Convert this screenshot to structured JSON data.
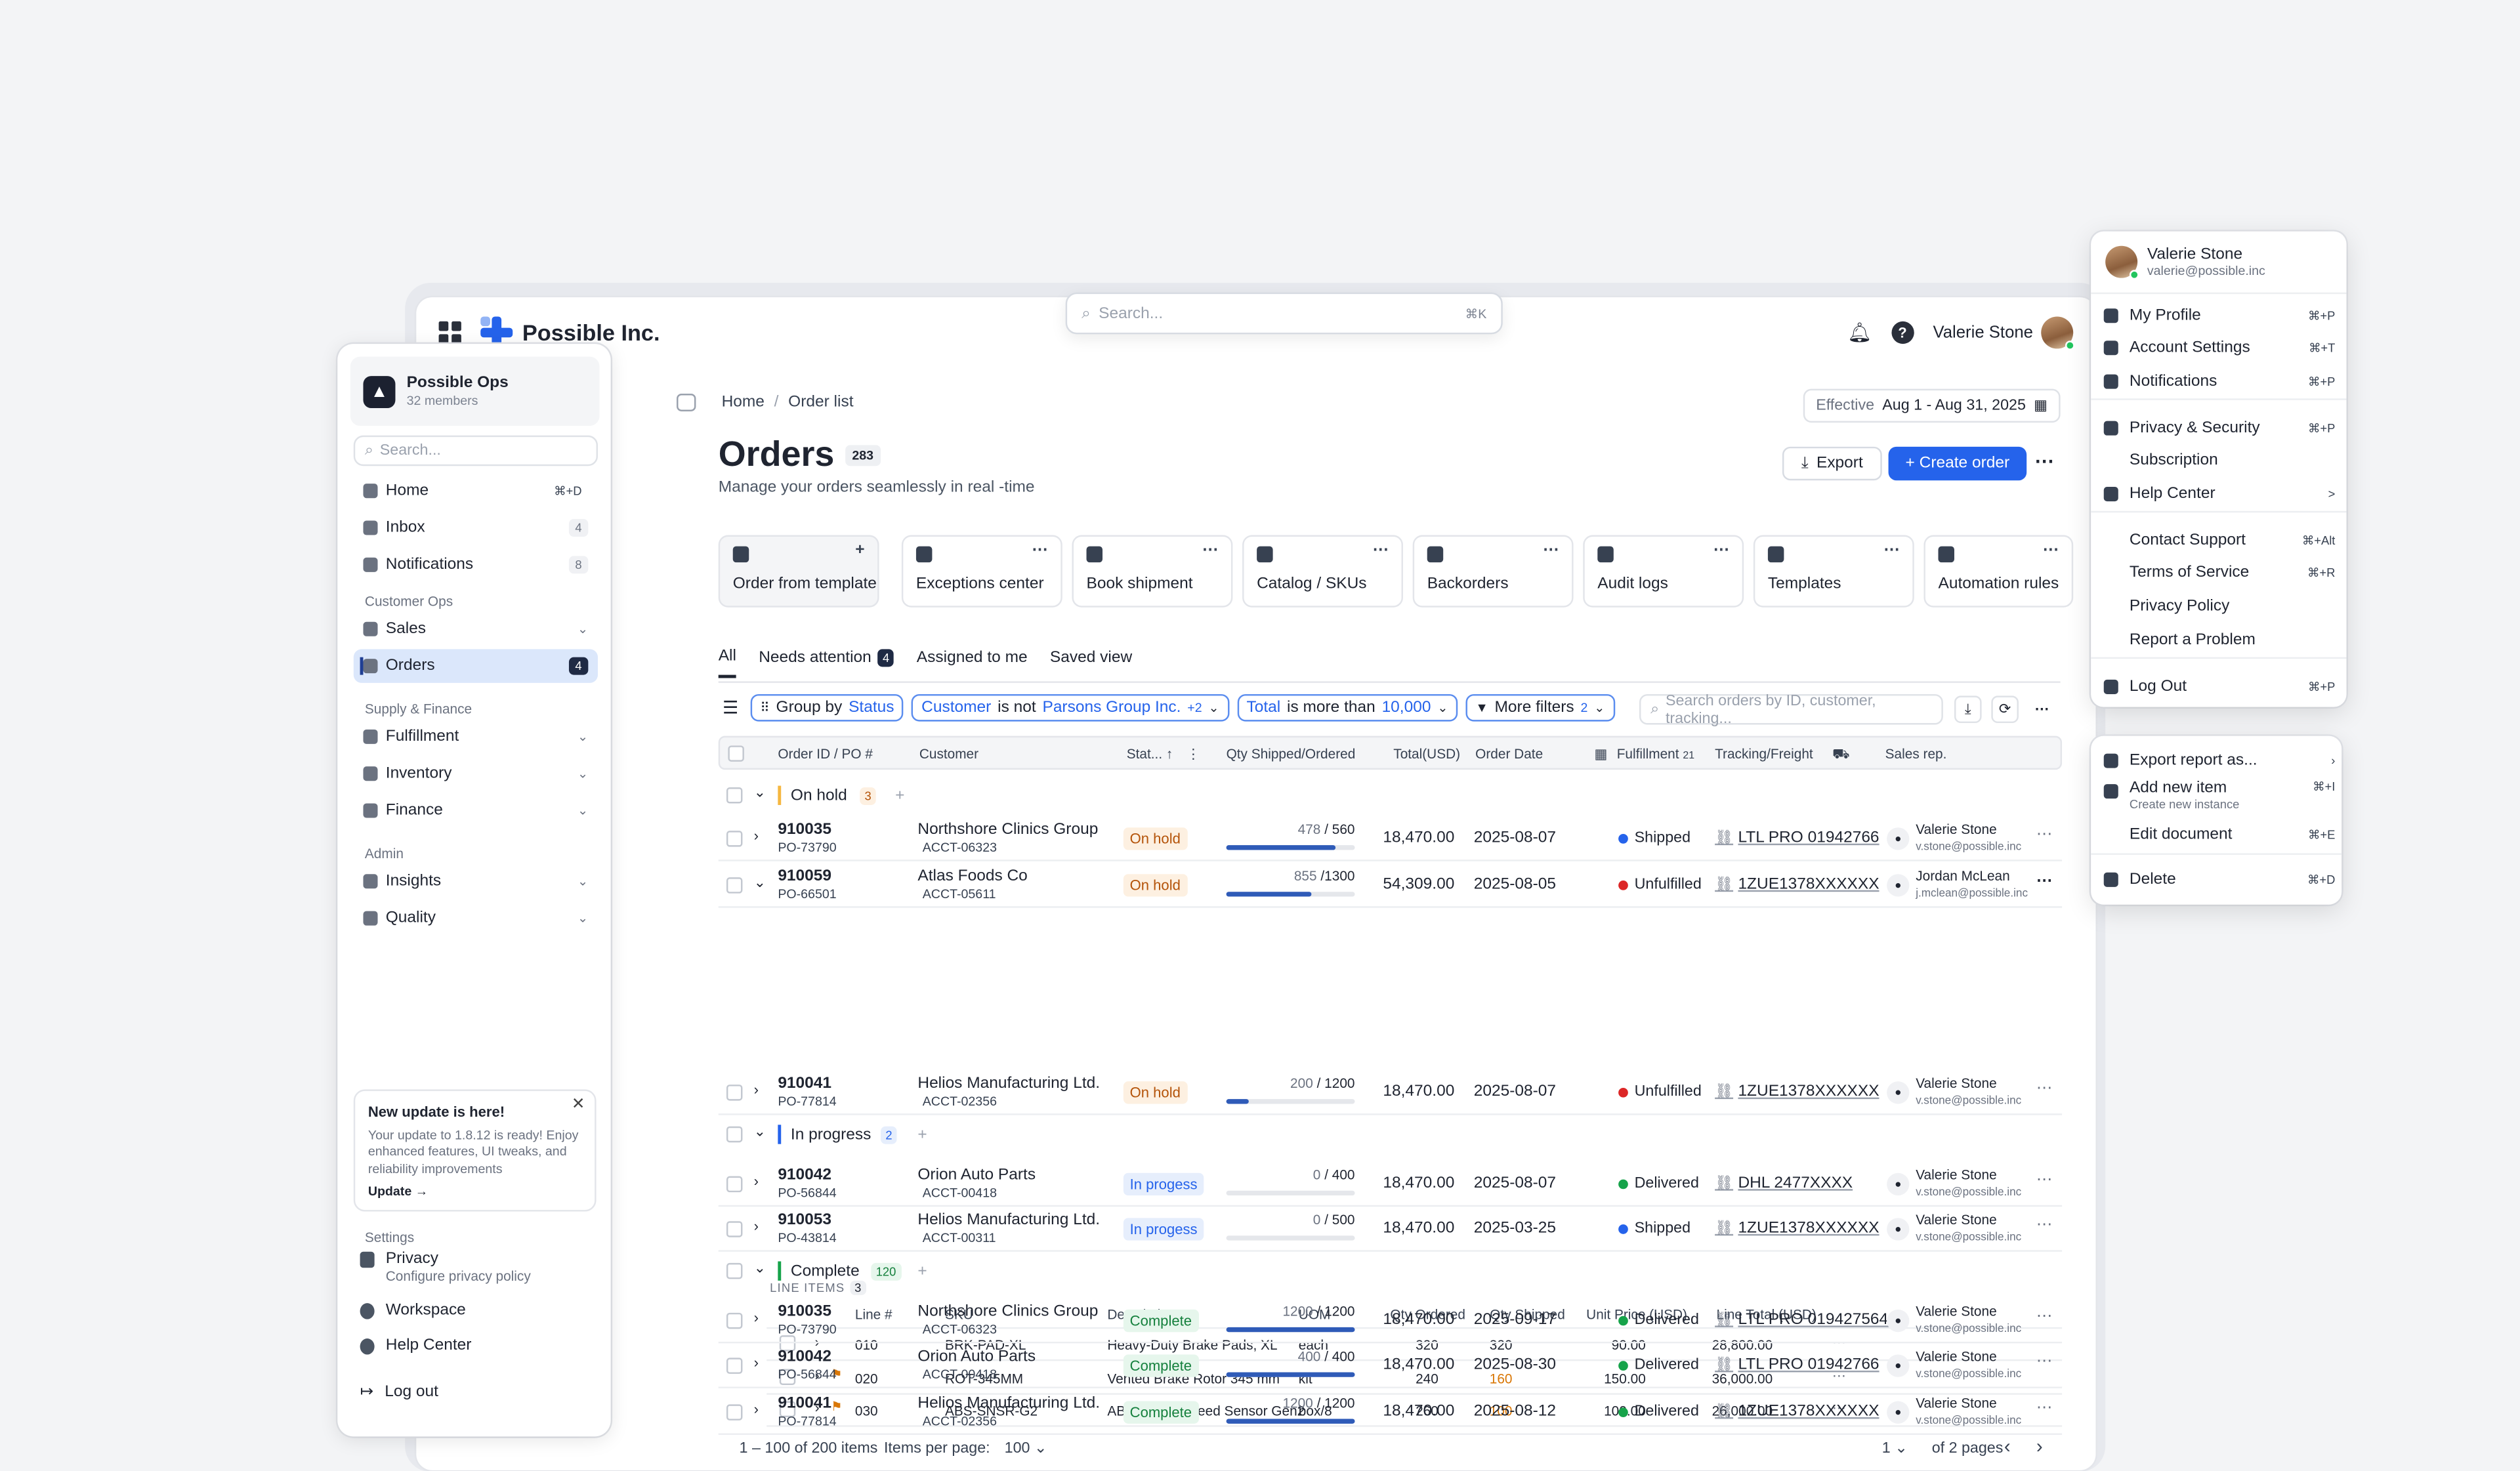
{
  "app": {
    "brand": "Possible Inc.",
    "search_placeholder": "Search...",
    "search_kbd": "⌘K",
    "user_name": "Valerie Stone"
  },
  "sidebar": {
    "workspace_name": "Possible Ops",
    "workspace_members": "32 members",
    "search_placeholder": "Search...",
    "home": {
      "label": "Home",
      "kbd": "⌘+D"
    },
    "inbox": {
      "label": "Inbox",
      "count": "4"
    },
    "notifications": {
      "label": "Notifications",
      "count": "8"
    },
    "section_customer": "Customer Ops",
    "sales": "Sales",
    "orders": {
      "label": "Orders",
      "count": "4"
    },
    "section_supply": "Supply & Finance",
    "fulfillment": "Fulfillment",
    "inventory": "Inventory",
    "finance": "Finance",
    "section_admin": "Admin",
    "insights": "Insights",
    "quality": "Quality",
    "update": {
      "title": "New update is here!",
      "body": "Your update to 1.8.12 is ready! Enjoy enhanced features, UI tweaks, and reliability improvements",
      "link": "Update →"
    },
    "section_settings": "Settings",
    "privacy": {
      "label": "Privacy",
      "sub": "Configure privacy policy"
    },
    "workspace": "Workspace",
    "help": "Help Center",
    "logout": "Log out"
  },
  "main": {
    "crumbs": [
      "Home",
      "Order list"
    ],
    "effective_label": "Effective",
    "effective_value": "Aug 1 - Aug 31, 2025",
    "title": "Orders",
    "title_count": "283",
    "subtitle": "Manage your orders seamlessly in real -time",
    "export": "Export",
    "create": "+ Create order",
    "quick": [
      "Order from template",
      "Exceptions center",
      "Book shipment",
      "Catalog / SKUs",
      "Backorders",
      "Audit logs",
      "Templates",
      "Automation rules"
    ],
    "tabs": {
      "all": "All",
      "attention": "Needs attention",
      "attention_count": "4",
      "assigned": "Assigned to me",
      "saved": "Saved view"
    },
    "filters": {
      "group_label": "Group by",
      "group_value": "Status",
      "cust_label": "Customer",
      "cust_op": "is not",
      "cust_value": "Parsons Group Inc.",
      "cust_more": "+2",
      "total_label": "Total",
      "total_op": "is more than",
      "total_value": "10,000",
      "more_label": "More filters",
      "more_count": "2"
    },
    "table_search": "Search orders by ID, customer, tracking...",
    "headers": {
      "id": "Order ID / PO #",
      "customer": "Customer",
      "status": "Stat...",
      "qty": "Qty Shipped/Ordered",
      "total": "Total(USD)",
      "date": "Order Date",
      "ful": "Fulfillment",
      "ful_count": "21",
      "trk": "Tracking/Freight",
      "rep": "Sales rep."
    },
    "groups": {
      "hold": {
        "label": "On hold",
        "count": "3"
      },
      "prog": {
        "label": "In progress",
        "count": "2"
      },
      "comp": {
        "label": "Complete",
        "count": "120"
      }
    },
    "rows": [
      {
        "id": "910035",
        "po": "PO-73790",
        "customer": "Northshore Clinics Group",
        "acct": "ACCT-06323",
        "status": "On hold",
        "shipped": "478",
        "ordered": "/ 560",
        "progress": 0.85,
        "total": "18,470.00",
        "date": "2025-08-07",
        "ful": "Shipped",
        "ful_color": "#2563eb",
        "trk": "LTL PRO 01942766",
        "rep": "Valerie Stone",
        "rep_email": "v.stone@possible.inc"
      },
      {
        "id": "910059",
        "po": "PO-66501",
        "customer": "Atlas Foods Co",
        "acct": "ACCT-05611",
        "status": "On hold",
        "shipped": "855",
        "ordered": "/1300",
        "progress": 0.66,
        "total": "54,309.00",
        "date": "2025-08-05",
        "ful": "Unfulfilled",
        "ful_color": "#dc2626",
        "trk": "1ZUE1378XXXXXX",
        "rep": "Jordan McLean",
        "rep_email": "j.mclean@possible.inc"
      },
      {
        "id": "910041",
        "po": "PO-77814",
        "customer": "Helios Manufacturing Ltd.",
        "acct": "ACCT-02356",
        "status": "On hold",
        "shipped": "200",
        "ordered": "/ 1200",
        "progress": 0.17,
        "total": "18,470.00",
        "date": "2025-08-07",
        "ful": "Unfulfilled",
        "ful_color": "#dc2626",
        "trk": "1ZUE1378XXXXXX",
        "rep": "Valerie Stone",
        "rep_email": "v.stone@possible.inc"
      },
      {
        "id": "910042",
        "po": "PO-56844",
        "customer": "Orion Auto Parts",
        "acct": "ACCT-00418",
        "status": "In progess",
        "shipped": "0",
        "ordered": "/ 400",
        "progress": 0,
        "total": "18,470.00",
        "date": "2025-08-07",
        "ful": "Delivered",
        "ful_color": "#16a34a",
        "trk": "DHL 2477XXXX",
        "rep": "Valerie Stone",
        "rep_email": "v.stone@possible.inc"
      },
      {
        "id": "910053",
        "po": "PO-43814",
        "customer": "Helios Manufacturing Ltd.",
        "acct": "ACCT-00311",
        "status": "In progess",
        "shipped": "0",
        "ordered": "/ 500",
        "progress": 0,
        "total": "18,470.00",
        "date": "2025-03-25",
        "ful": "Shipped",
        "ful_color": "#2563eb",
        "trk": "1ZUE1378XXXXXX",
        "rep": "Valerie Stone",
        "rep_email": "v.stone@possible.inc"
      },
      {
        "id": "910035",
        "po": "PO-73790",
        "customer": "Northshore Clinics Group",
        "acct": "ACCT-06323",
        "status": "Complete",
        "shipped": "1200",
        "ordered": "/ 1200",
        "progress": 1,
        "total": "18,470.00",
        "date": "2025-09-17",
        "ful": "Delivered",
        "ful_color": "#16a34a",
        "trk": "LTL PRO 0194275643",
        "rep": "Valerie Stone",
        "rep_email": "v.stone@possible.inc"
      },
      {
        "id": "910042",
        "po": "PO-56844",
        "customer": "Orion Auto Parts",
        "acct": "ACCT-00418",
        "status": "Complete",
        "shipped": "400",
        "ordered": "/ 400",
        "progress": 1,
        "total": "18,470.00",
        "date": "2025-08-30",
        "ful": "Delivered",
        "ful_color": "#16a34a",
        "trk": "LTL PRO 01942766",
        "rep": "Valerie Stone",
        "rep_email": "v.stone@possible.inc"
      },
      {
        "id": "910041",
        "po": "PO-77814",
        "customer": "Helios Manufacturing Ltd.",
        "acct": "ACCT-02356",
        "status": "Complete",
        "shipped": "1200",
        "ordered": "/ 1200",
        "progress": 1,
        "total": "18,470.00",
        "date": "2025-08-12",
        "ful": "Delivered",
        "ful_color": "#16a34a",
        "trk": "1ZUE1378XXXXXX",
        "rep": "Valerie Stone",
        "rep_email": "v.stone@possible.inc"
      }
    ],
    "line_items": {
      "label": "LINE ITEMS",
      "count": "3",
      "headers": [
        "Line #",
        "SKU",
        "Description",
        "UOM",
        "Qty Ordered",
        "Qty Shipped",
        "Unit Price (USD)",
        "Line Total (USD)"
      ],
      "rows": [
        {
          "line": "010",
          "sku": "BRK-PAD-XL",
          "desc": "Heavy-Duty Brake Pads, XL",
          "uom": "each",
          "ordered": "320",
          "shipped": "320",
          "price": "90.00",
          "total": "28,800.00"
        },
        {
          "line": "020",
          "sku": "ROT-345MM",
          "desc": "Vented Brake Rotor 345 mm",
          "uom": "kit",
          "ordered": "240",
          "shipped": "160",
          "price": "150.00",
          "total": "36,000.00"
        },
        {
          "line": "030",
          "sku": "ABS-SNSR-G2",
          "desc": "ABS Wheel Speed Sensor Gen2",
          "uom": "box/8",
          "ordered": "260",
          "shipped": "100",
          "price": "100.00",
          "total": "26,000.00"
        }
      ]
    },
    "footer": {
      "range": "1 – 100 of 200 items",
      "per_page_label": "Items per page:",
      "per_page": "100",
      "page": "1",
      "of_pages": "of 2 pages"
    }
  },
  "profile_menu": {
    "name": "Valerie Stone",
    "email": "valerie@possible.inc",
    "items": [
      {
        "label": "My Profile",
        "kbd": "⌘+P"
      },
      {
        "label": "Account Settings",
        "kbd": "⌘+T"
      },
      {
        "label": "Notifications",
        "kbd": "⌘+P"
      },
      {
        "label": "Privacy & Security",
        "kbd": "⌘+P"
      },
      {
        "label": "Subscription",
        "kbd": ""
      },
      {
        "label": "Help Center",
        "kbd": ">"
      },
      {
        "label": "Contact Support",
        "kbd": "⌘+Alt"
      },
      {
        "label": "Terms of Service",
        "kbd": "⌘+R"
      },
      {
        "label": "Privacy Policy",
        "kbd": ""
      },
      {
        "label": "Report a Problem",
        "kbd": ""
      },
      {
        "label": "Log Out",
        "kbd": "⌘+P"
      }
    ]
  },
  "context_menu": {
    "export": "Export report as...",
    "add": "Add new item",
    "add_sub": "Create new instance",
    "add_kbd": "⌘+I",
    "edit": "Edit document",
    "edit_kbd": "⌘+E",
    "delete": "Delete",
    "delete_kbd": "⌘+D"
  }
}
